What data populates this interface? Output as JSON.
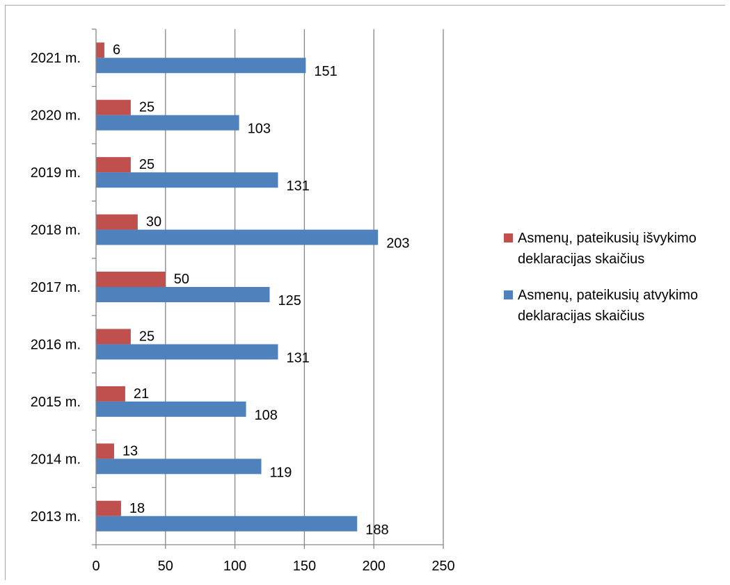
{
  "chart_data": {
    "type": "bar",
    "orientation": "horizontal",
    "categories": [
      "2013 m.",
      "2014 m.",
      "2015 m.",
      "2016 m.",
      "2017 m.",
      "2018 m.",
      "2019 m.",
      "2020 m.",
      "2021 m."
    ],
    "series": [
      {
        "name": "Asmenų, pateikusių išvykimo deklaracijas skaičius",
        "color": "#c0504d",
        "values": [
          18,
          13,
          21,
          25,
          50,
          30,
          25,
          25,
          6
        ]
      },
      {
        "name": "Asmenų, pateikusių atvykimo deklaracijas skaičius",
        "color": "#4f81bd",
        "values": [
          188,
          119,
          108,
          131,
          125,
          203,
          131,
          103,
          151
        ]
      }
    ],
    "xlim": [
      0,
      250
    ],
    "xticks": [
      0,
      50,
      100,
      150,
      200,
      250
    ],
    "grid": true,
    "legend_position": "right",
    "data_labels": true
  }
}
